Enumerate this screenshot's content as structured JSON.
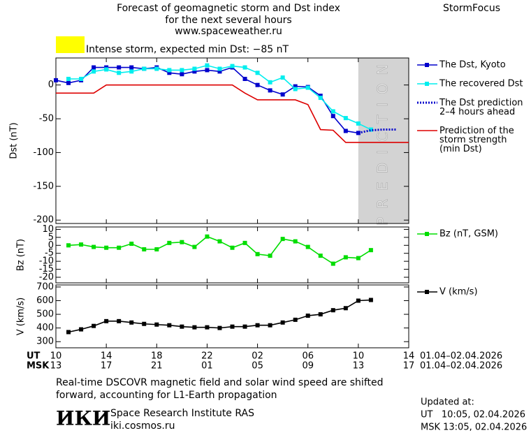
{
  "header": {
    "title_lines": [
      "Forecast of geomagnetic storm and Dst index",
      "for the next several hours",
      "www.spaceweather.ru"
    ],
    "brand": "StormFocus",
    "storm_level": "Intense storm, expected min Dst: −85 nT",
    "storm_color": "#ffff00"
  },
  "chart_data": [
    {
      "type": "line",
      "ylabel": "Dst (nT)",
      "xlim": [
        0,
        28
      ],
      "ylim": [
        -205,
        40
      ],
      "yticks": [
        0,
        -50,
        -100,
        -150,
        -200
      ],
      "prediction_start": 24,
      "prediction_label": "PREDICTION",
      "series": [
        {
          "name": "The Dst, Kyoto",
          "color": "#0000cc",
          "marker": "square",
          "x": [
            0,
            1,
            2,
            3,
            4,
            5,
            6,
            7,
            8,
            9,
            10,
            11,
            12,
            13,
            14,
            15,
            16,
            17,
            18,
            19,
            20,
            21,
            22,
            23,
            24
          ],
          "values": [
            7,
            3,
            7,
            26,
            26,
            26,
            26,
            24,
            26,
            18,
            16,
            20,
            22,
            20,
            26,
            9,
            0,
            -8,
            -14,
            -2,
            -3,
            -16,
            -46,
            -68,
            -71
          ]
        },
        {
          "name": "The recovered Dst",
          "color": "#00eeee",
          "marker": "square",
          "x": [
            1,
            2,
            3,
            4,
            5,
            6,
            7,
            8,
            9,
            10,
            11,
            12,
            13,
            14,
            15,
            16,
            17,
            18,
            19,
            20,
            21,
            22,
            23,
            24,
            25
          ],
          "values": [
            9,
            9,
            20,
            23,
            18,
            20,
            24,
            24,
            22,
            22,
            24,
            29,
            24,
            28,
            26,
            18,
            4,
            11,
            -6,
            -4,
            -19,
            -39,
            -49,
            -57,
            -66
          ]
        },
        {
          "name": "The Dst prediction\n2–4 hours ahead",
          "color": "#0000cc",
          "dash": "dotted",
          "x": [
            24,
            25,
            26,
            27
          ],
          "values": [
            -71,
            -67,
            -66,
            -66
          ]
        },
        {
          "name": "Prediction of the\nstorm strength\n(min Dst)",
          "color": "#dd0000",
          "x": [
            0,
            3,
            4,
            14,
            15,
            16,
            19,
            20,
            21,
            22,
            23,
            28
          ],
          "values": [
            -12,
            -12,
            0,
            0,
            -12,
            -22,
            -22,
            -29,
            -66,
            -67,
            -85,
            -85
          ]
        }
      ]
    },
    {
      "type": "line",
      "ylabel": "Bz (nT)",
      "xlim": [
        0,
        28
      ],
      "ylim": [
        -23.5,
        11.5
      ],
      "yticks": [
        10,
        5,
        0,
        -5,
        -10,
        -15,
        -20
      ],
      "series": [
        {
          "name": "Bz (nT, GSM)",
          "color": "#00dd00",
          "marker": "square",
          "x": [
            1,
            2,
            3,
            4,
            5,
            6,
            7,
            8,
            9,
            10,
            11,
            12,
            13,
            14,
            15,
            16,
            17,
            18,
            19,
            20,
            21,
            22,
            23,
            24,
            25
          ],
          "values": [
            0,
            0.5,
            -1,
            -1.5,
            -1.5,
            1,
            -2.5,
            -2.5,
            1.5,
            2,
            -1,
            5.5,
            2.5,
            -1.5,
            1.5,
            -5.5,
            -6.5,
            4,
            2.5,
            -1,
            -6.5,
            -11.5,
            -7.5,
            -8,
            -3
          ]
        }
      ]
    },
    {
      "type": "line",
      "ylabel": "V (km/s)",
      "xlim": [
        0,
        28
      ],
      "ylim": [
        255,
        715
      ],
      "yticks": [
        700,
        600,
        500,
        400,
        300
      ],
      "xticks": [
        {
          "value": 0,
          "label": "10"
        },
        {
          "value": 4,
          "label": "14"
        },
        {
          "value": 8,
          "label": "18"
        },
        {
          "value": 12,
          "label": "22"
        },
        {
          "value": 16,
          "label": "02"
        },
        {
          "value": 20,
          "label": "06"
        },
        {
          "value": 24,
          "label": "10"
        },
        {
          "value": 28,
          "label": "14"
        }
      ],
      "msk_ticks": [
        "13",
        "17",
        "21",
        "01",
        "05",
        "09",
        "13",
        "17"
      ],
      "ut_label": "UT",
      "msk_label": "MSK",
      "date_range_ut": "01.04–02.04.2026",
      "date_range_msk": "01.04–02.04.2026",
      "series": [
        {
          "name": "V (km/s)",
          "color": "#000000",
          "marker": "square",
          "x": [
            1,
            2,
            3,
            4,
            5,
            6,
            7,
            8,
            9,
            10,
            11,
            12,
            13,
            14,
            15,
            16,
            17,
            18,
            19,
            20,
            21,
            22,
            23,
            24,
            25
          ],
          "values": [
            370,
            390,
            415,
            450,
            450,
            440,
            430,
            425,
            420,
            410,
            405,
            405,
            400,
            410,
            410,
            420,
            420,
            440,
            460,
            490,
            500,
            530,
            545,
            600,
            605
          ]
        }
      ]
    }
  ],
  "footer": {
    "note_lines": [
      "Real-time DSCOVR magnetic field and solar wind speed are shifted",
      "forward, accounting for L1-Earth propagation"
    ],
    "logo": "ИКИ",
    "institute": "Space Research Institute RAS",
    "website": "iki.cosmos.ru",
    "updated_lines": [
      "Updated at:",
      "UT   10:05, 02.04.2026",
      "MSK 13:05, 02.04.2026"
    ]
  }
}
